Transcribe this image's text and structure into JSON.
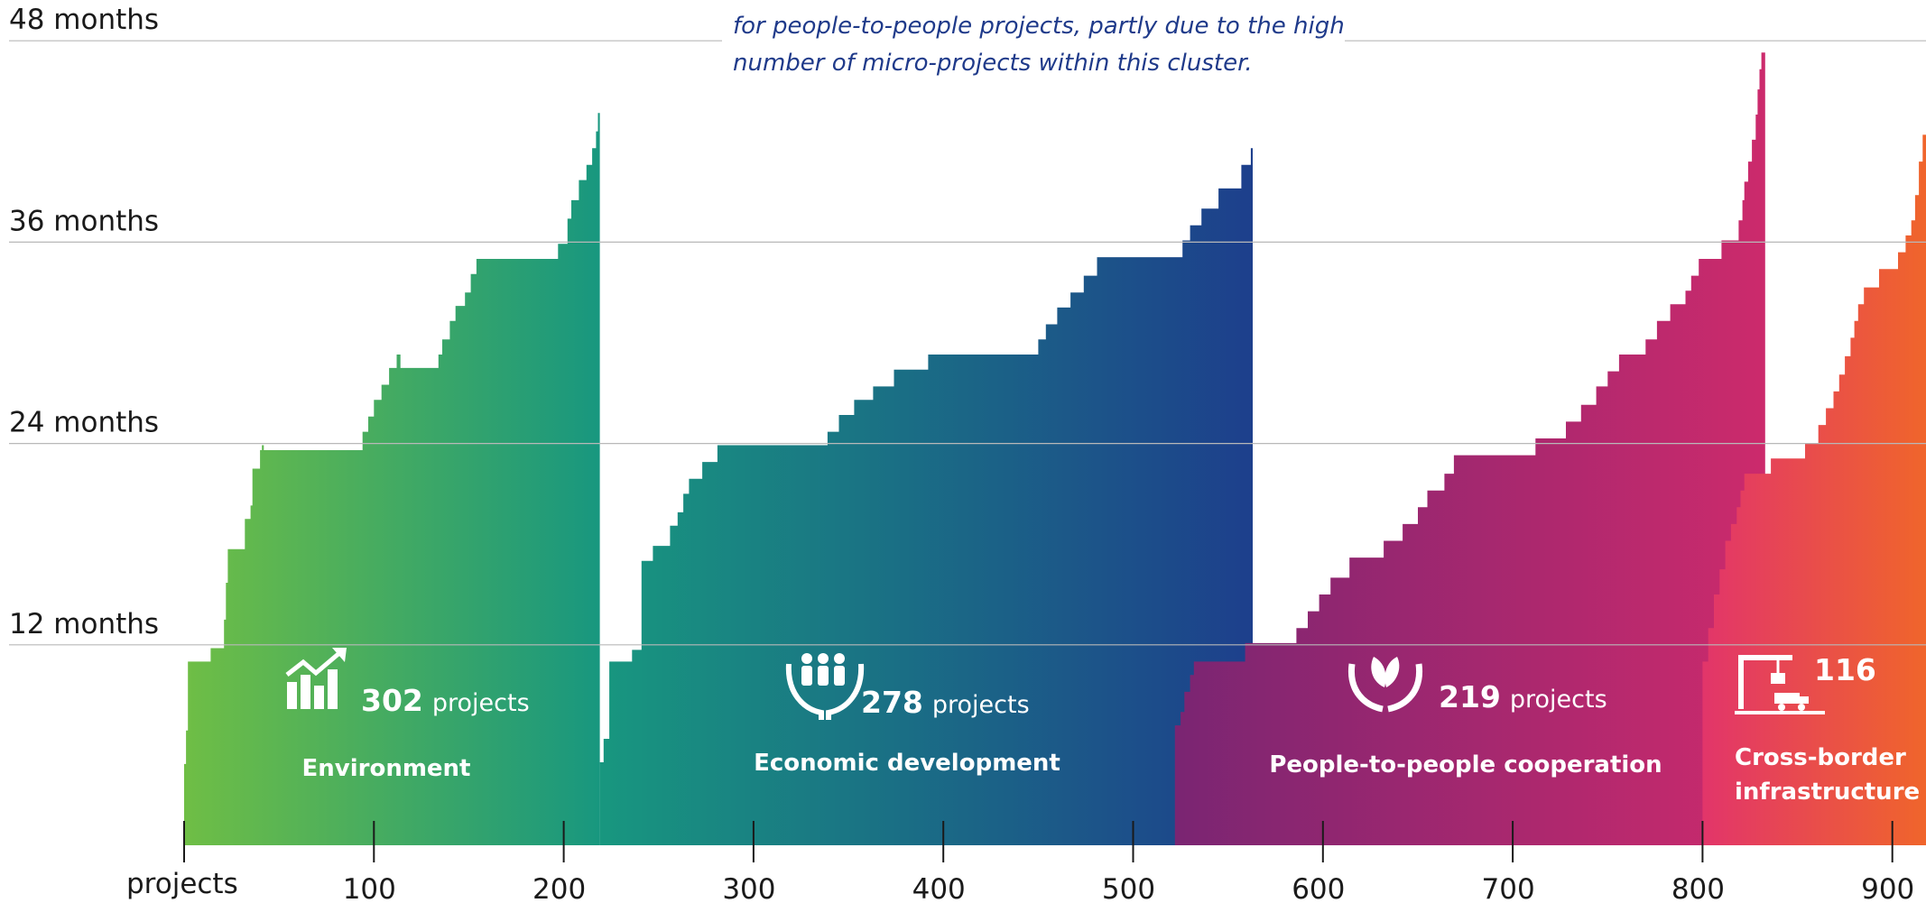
{
  "chart_data": {
    "type": "area",
    "xlabel": "projects",
    "ylabel": "",
    "xlim": [
      0,
      920
    ],
    "ylim": [
      0,
      49
    ],
    "x_ticks": [
      100,
      200,
      300,
      400,
      500,
      600,
      700,
      800,
      900
    ],
    "y_ticks": [
      {
        "value": 12,
        "label": "12 months"
      },
      {
        "value": 24,
        "label": "24 months"
      },
      {
        "value": 36,
        "label": "36 months"
      },
      {
        "value": 48,
        "label": "48 months"
      }
    ],
    "annotation": {
      "lines": [
        "for people-to-people projects, partly due to the high",
        "number of micro-projects within this cluster."
      ]
    },
    "series": [
      {
        "name": "Environment",
        "count_value": "302",
        "count_unit": "projects",
        "label_lines": [
          "Environment"
        ],
        "icon": "chart-growth-icon",
        "x_start": 0,
        "x_end": 219,
        "color_start": "#6fbe45",
        "color_end": "#18977f",
        "steps": [
          [
            0,
            4.9
          ],
          [
            1,
            6.9
          ],
          [
            2,
            11
          ],
          [
            14,
            11.8
          ],
          [
            21,
            13.5
          ],
          [
            22,
            15.7
          ],
          [
            23,
            17.7
          ],
          [
            32,
            19.5
          ],
          [
            35,
            20.3
          ],
          [
            36,
            22.5
          ],
          [
            40,
            23.6
          ],
          [
            41,
            23.9
          ],
          [
            42,
            23.6
          ],
          [
            94,
            24.7
          ],
          [
            97,
            25.6
          ],
          [
            100,
            26.6
          ],
          [
            104,
            27.5
          ],
          [
            108,
            28.5
          ],
          [
            112,
            29.3
          ],
          [
            114,
            28.5
          ],
          [
            134,
            29.3
          ],
          [
            136,
            30.2
          ],
          [
            140,
            31.3
          ],
          [
            143,
            32.2
          ],
          [
            148,
            33.0
          ],
          [
            151,
            34.1
          ],
          [
            154,
            35.0
          ],
          [
            197,
            35.9
          ],
          [
            202,
            37.4
          ],
          [
            204,
            38.5
          ],
          [
            208,
            39.7
          ],
          [
            212,
            40.6
          ],
          [
            215,
            41.6
          ],
          [
            217,
            42.6
          ],
          [
            218,
            43.7
          ],
          [
            219,
            0
          ]
        ]
      },
      {
        "name": "Economic development",
        "count_value": "278",
        "count_unit": "projects",
        "label_lines": [
          "Economic development"
        ],
        "icon": "people-hands-icon",
        "x_start": 219,
        "x_end": 522,
        "color_start": "#18977f",
        "color_end": "#1d3f8c",
        "steps": [
          [
            219,
            5.0
          ],
          [
            221,
            6.4
          ],
          [
            224,
            11.0
          ],
          [
            236,
            11.7
          ],
          [
            241,
            17.0
          ],
          [
            247,
            17.9
          ],
          [
            256,
            19.1
          ],
          [
            260,
            19.9
          ],
          [
            263,
            21.0
          ],
          [
            266,
            21.9
          ],
          [
            273,
            22.9
          ],
          [
            281,
            23.9
          ],
          [
            339,
            24.7
          ],
          [
            345,
            25.7
          ],
          [
            353,
            26.6
          ],
          [
            363,
            27.4
          ],
          [
            374,
            28.4
          ],
          [
            392,
            29.3
          ],
          [
            450,
            30.2
          ],
          [
            454,
            31.1
          ],
          [
            460,
            32.1
          ],
          [
            467,
            33.0
          ],
          [
            474,
            34.0
          ],
          [
            481,
            35.1
          ],
          [
            526,
            36.1
          ],
          [
            530,
            37.0
          ],
          [
            536,
            38.0
          ],
          [
            545,
            39.2
          ],
          [
            557,
            40.6
          ],
          [
            562,
            41.6
          ],
          [
            563,
            0
          ]
        ]
      },
      {
        "name": "People-to-people cooperation",
        "count_value": "219",
        "count_unit": "projects",
        "label_lines": [
          "People-to-people cooperation"
        ],
        "icon": "hands-leaf-icon",
        "x_start": 522,
        "x_end": 800,
        "color_start": "#7a2572",
        "color_end": "#cc2a6c",
        "steps": [
          [
            522,
            7.2
          ],
          [
            525,
            8.0
          ],
          [
            527,
            9.2
          ],
          [
            530,
            10.2
          ],
          [
            532,
            11.0
          ],
          [
            559,
            12.1
          ],
          [
            586,
            13.0
          ],
          [
            592,
            14.0
          ],
          [
            598,
            15.0
          ],
          [
            604,
            16.0
          ],
          [
            614,
            17.2
          ],
          [
            632,
            18.2
          ],
          [
            642,
            19.2
          ],
          [
            650,
            20.2
          ],
          [
            655,
            21.2
          ],
          [
            664,
            22.2
          ],
          [
            669,
            23.3
          ],
          [
            712,
            24.3
          ],
          [
            728,
            25.3
          ],
          [
            736,
            26.3
          ],
          [
            744,
            27.4
          ],
          [
            750,
            28.3
          ],
          [
            756,
            29.3
          ],
          [
            770,
            30.2
          ],
          [
            776,
            31.3
          ],
          [
            783,
            32.3
          ],
          [
            791,
            33.1
          ],
          [
            794,
            34.0
          ],
          [
            798,
            35.0
          ],
          [
            810,
            36.1
          ],
          [
            819,
            37.3
          ],
          [
            821,
            38.5
          ],
          [
            822,
            39.6
          ],
          [
            824,
            40.8
          ],
          [
            826,
            42.1
          ],
          [
            828,
            43.6
          ],
          [
            829,
            45.1
          ],
          [
            830,
            46.3
          ],
          [
            831,
            47.3
          ],
          [
            833,
            0
          ]
        ]
      },
      {
        "name": "Cross-border infrastructure",
        "count_value": "116",
        "count_unit": "",
        "label_lines": [
          "Cross-border",
          "infrastructure"
        ],
        "icon": "crane-truck-icon",
        "x_start": 800,
        "x_end": 918,
        "color_start": "#e2356a",
        "color_end": "#f0662a",
        "steps": [
          [
            800,
            11.0
          ],
          [
            803,
            13.0
          ],
          [
            806,
            15.0
          ],
          [
            809,
            16.5
          ],
          [
            812,
            18.2
          ],
          [
            815,
            19.2
          ],
          [
            818,
            20.2
          ],
          [
            820,
            21.2
          ],
          [
            822,
            22.2
          ],
          [
            836,
            23.1
          ],
          [
            854,
            24.0
          ],
          [
            861,
            25.1
          ],
          [
            865,
            26.1
          ],
          [
            869,
            27.1
          ],
          [
            872,
            28.1
          ],
          [
            875,
            29.2
          ],
          [
            878,
            30.3
          ],
          [
            880,
            31.3
          ],
          [
            882,
            32.3
          ],
          [
            885,
            33.3
          ],
          [
            893,
            34.4
          ],
          [
            903,
            35.4
          ],
          [
            907,
            36.4
          ],
          [
            910,
            37.3
          ],
          [
            912,
            38.8
          ],
          [
            914,
            40.8
          ],
          [
            916,
            42.4
          ],
          [
            918,
            43.5
          ],
          [
            920,
            0
          ]
        ]
      }
    ]
  }
}
